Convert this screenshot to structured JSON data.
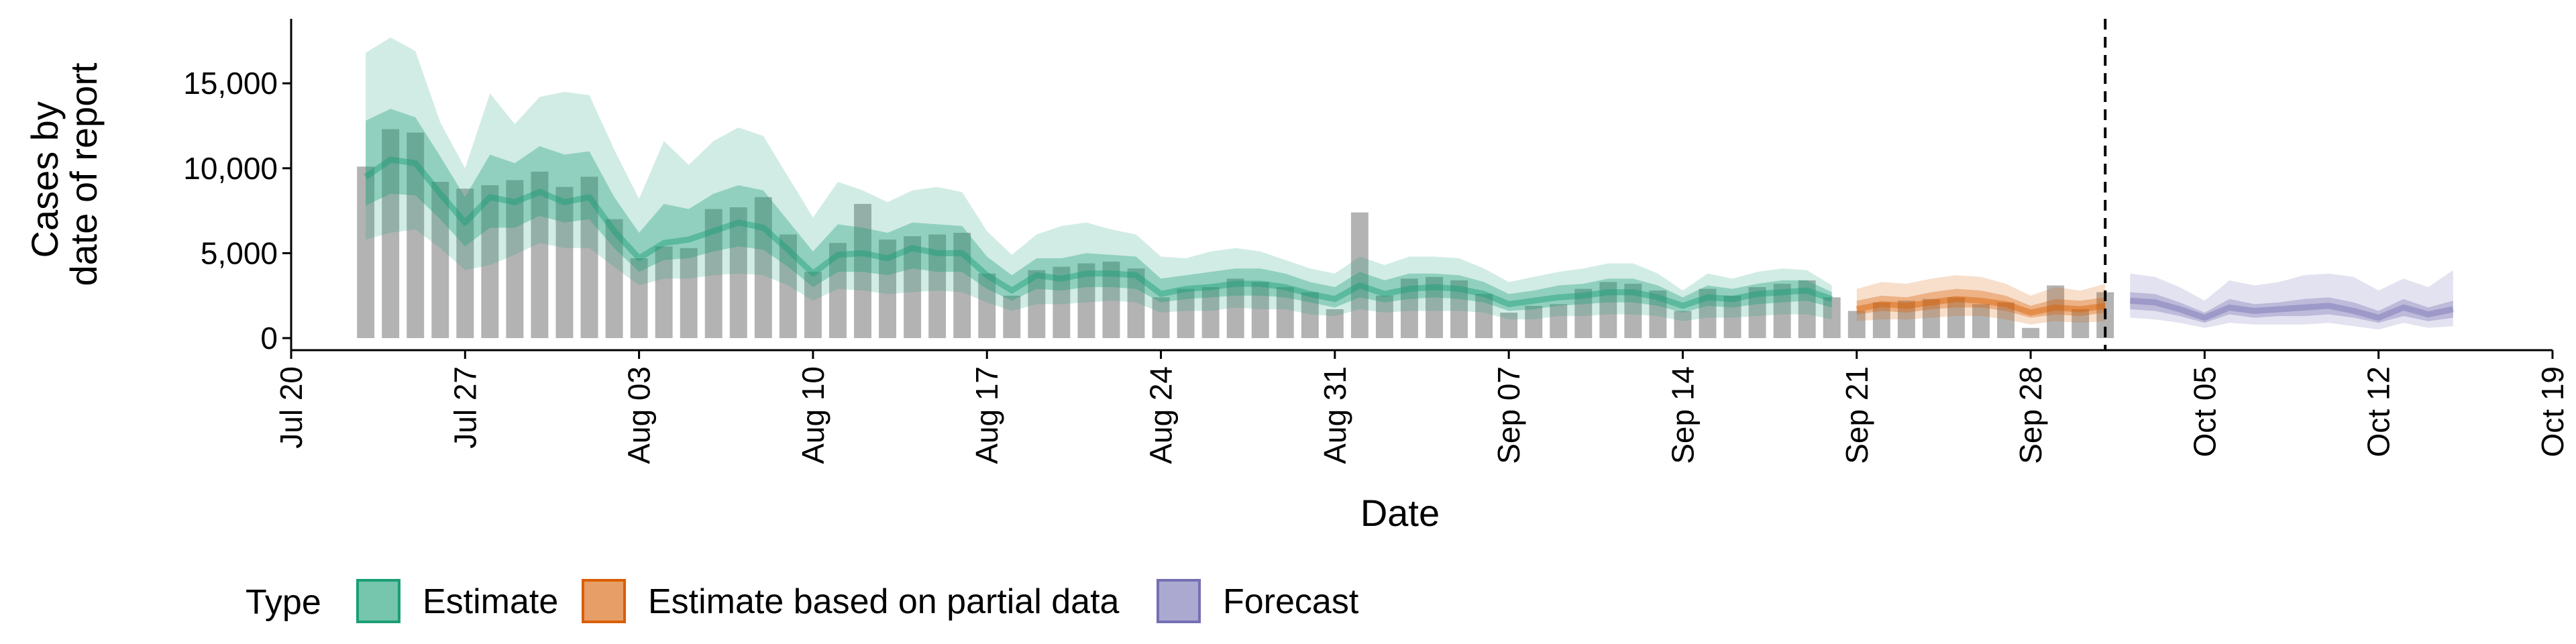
{
  "chart_data": {
    "type": "bar",
    "xlabel": "Date",
    "ylabel": [
      "Cases by",
      "date of report"
    ],
    "yticks": [
      0,
      5000,
      10000,
      15000
    ],
    "ytick_labels": [
      "0",
      "5,000",
      "10,000",
      "15,000"
    ],
    "ylim": [
      0,
      18500
    ],
    "xlim": [
      "2020-07-20",
      "2020-10-19"
    ],
    "xtick_labels": [
      "Jul 20",
      "Jul 27",
      "Aug 03",
      "Aug 10",
      "Aug 17",
      "Aug 24",
      "Aug 31",
      "Sep 07",
      "Sep 14",
      "Sep 21",
      "Sep 28",
      "Oct 05",
      "Oct 12",
      "Oct 19"
    ],
    "xtick_dates": [
      "2020-07-20",
      "2020-07-27",
      "2020-08-03",
      "2020-08-10",
      "2020-08-17",
      "2020-08-24",
      "2020-08-31",
      "2020-09-07",
      "2020-09-14",
      "2020-09-21",
      "2020-09-28",
      "2020-10-05",
      "2020-10-12",
      "2020-10-19"
    ],
    "vline_date": "2020-10-01",
    "colors": {
      "bars": "#b3b3b3",
      "Estimate": "#1b9e77",
      "Estimate based on partial data": "#d95f02",
      "Forecast": "#7570b3"
    },
    "reported_cases": {
      "dates": [
        "2020-07-23",
        "2020-07-24",
        "2020-07-25",
        "2020-07-26",
        "2020-07-27",
        "2020-07-28",
        "2020-07-29",
        "2020-07-30",
        "2020-07-31",
        "2020-08-01",
        "2020-08-02",
        "2020-08-03",
        "2020-08-04",
        "2020-08-05",
        "2020-08-06",
        "2020-08-07",
        "2020-08-08",
        "2020-08-09",
        "2020-08-10",
        "2020-08-11",
        "2020-08-12",
        "2020-08-13",
        "2020-08-14",
        "2020-08-15",
        "2020-08-16",
        "2020-08-17",
        "2020-08-18",
        "2020-08-19",
        "2020-08-20",
        "2020-08-21",
        "2020-08-22",
        "2020-08-23",
        "2020-08-24",
        "2020-08-25",
        "2020-08-26",
        "2020-08-27",
        "2020-08-28",
        "2020-08-29",
        "2020-08-30",
        "2020-08-31",
        "2020-09-01",
        "2020-09-02",
        "2020-09-03",
        "2020-09-04",
        "2020-09-05",
        "2020-09-06",
        "2020-09-07",
        "2020-09-08",
        "2020-09-09",
        "2020-09-10",
        "2020-09-11",
        "2020-09-12",
        "2020-09-13",
        "2020-09-14",
        "2020-09-15",
        "2020-09-16",
        "2020-09-17",
        "2020-09-18",
        "2020-09-19",
        "2020-09-20",
        "2020-09-21",
        "2020-09-22",
        "2020-09-23",
        "2020-09-24",
        "2020-09-25",
        "2020-09-26",
        "2020-09-27",
        "2020-09-28",
        "2020-09-29",
        "2020-09-30",
        "2020-10-01"
      ],
      "values": [
        10100,
        12300,
        12100,
        9200,
        8800,
        9000,
        9300,
        9800,
        8900,
        9500,
        7000,
        4700,
        5400,
        5300,
        7600,
        7700,
        8300,
        6100,
        3900,
        5600,
        7900,
        5800,
        6000,
        6100,
        6200,
        3800,
        2500,
        4000,
        4200,
        4400,
        4500,
        4100,
        2400,
        2900,
        3000,
        3500,
        3300,
        3000,
        2700,
        1700,
        7400,
        2500,
        3500,
        3600,
        3400,
        2600,
        1500,
        1900,
        2000,
        2900,
        3300,
        3200,
        2800,
        1600,
        2900,
        2500,
        3000,
        3200,
        3400,
        2400,
        1600,
        2100,
        2200,
        2300,
        2400,
        2000,
        2100,
        600,
        3100,
        1700,
        2700
      ]
    },
    "series": [
      {
        "name": "Estimate",
        "dates": [
          "2020-07-23",
          "2020-07-24",
          "2020-07-25",
          "2020-07-26",
          "2020-07-27",
          "2020-07-28",
          "2020-07-29",
          "2020-07-30",
          "2020-07-31",
          "2020-08-01",
          "2020-08-02",
          "2020-08-03",
          "2020-08-04",
          "2020-08-05",
          "2020-08-06",
          "2020-08-07",
          "2020-08-08",
          "2020-08-09",
          "2020-08-10",
          "2020-08-11",
          "2020-08-12",
          "2020-08-13",
          "2020-08-14",
          "2020-08-15",
          "2020-08-16",
          "2020-08-17",
          "2020-08-18",
          "2020-08-19",
          "2020-08-20",
          "2020-08-21",
          "2020-08-22",
          "2020-08-23",
          "2020-08-24",
          "2020-08-25",
          "2020-08-26",
          "2020-08-27",
          "2020-08-28",
          "2020-08-29",
          "2020-08-30",
          "2020-08-31",
          "2020-09-01",
          "2020-09-02",
          "2020-09-03",
          "2020-09-04",
          "2020-09-05",
          "2020-09-06",
          "2020-09-07",
          "2020-09-08",
          "2020-09-09",
          "2020-09-10",
          "2020-09-11",
          "2020-09-12",
          "2020-09-13",
          "2020-09-14",
          "2020-09-15",
          "2020-09-16",
          "2020-09-17",
          "2020-09-18",
          "2020-09-19",
          "2020-09-20"
        ],
        "median": [
          9500,
          10500,
          10300,
          8500,
          6800,
          8300,
          8000,
          8600,
          8000,
          8300,
          6300,
          4700,
          5600,
          5800,
          6300,
          6800,
          6500,
          5200,
          3800,
          4900,
          5000,
          4700,
          5300,
          5000,
          5000,
          3700,
          2800,
          3700,
          3500,
          3800,
          3800,
          3700,
          2600,
          2900,
          3000,
          3200,
          3200,
          3000,
          2600,
          2300,
          3100,
          2600,
          2900,
          3000,
          2900,
          2600,
          2000,
          2200,
          2400,
          2500,
          2700,
          2700,
          2400,
          1900,
          2400,
          2300,
          2600,
          2700,
          2800,
          2300
        ],
        "lower_90": [
          5800,
          6200,
          6400,
          5300,
          4000,
          4300,
          4900,
          5600,
          5300,
          5300,
          4200,
          3100,
          3500,
          3500,
          3700,
          3800,
          3700,
          3100,
          2200,
          2900,
          2800,
          2600,
          2700,
          2800,
          2700,
          2100,
          1600,
          2000,
          2000,
          2100,
          2200,
          2100,
          1500,
          1600,
          1600,
          1800,
          1700,
          1700,
          1400,
          1300,
          1700,
          1500,
          1600,
          1600,
          1600,
          1500,
          1100,
          1100,
          1300,
          1300,
          1400,
          1400,
          1300,
          1000,
          1200,
          1200,
          1300,
          1400,
          1400,
          1100
        ],
        "upper_90": [
          16800,
          17700,
          16900,
          12700,
          10000,
          14400,
          12600,
          14200,
          14500,
          14300,
          11100,
          8200,
          11600,
          10200,
          11600,
          12400,
          11900,
          9500,
          7100,
          9200,
          8700,
          8000,
          8700,
          8900,
          8600,
          6300,
          4900,
          6100,
          6600,
          6800,
          6400,
          6100,
          4800,
          4700,
          5100,
          5300,
          5100,
          4600,
          4100,
          3800,
          4800,
          4300,
          4800,
          4800,
          4700,
          4100,
          3300,
          3600,
          3900,
          4100,
          4400,
          4400,
          3800,
          2800,
          3800,
          3500,
          3900,
          4100,
          4000,
          3100
        ],
        "lower_50": [
          7800,
          8500,
          8400,
          7000,
          5400,
          6500,
          6500,
          7200,
          6800,
          7000,
          5300,
          3900,
          4600,
          4700,
          5100,
          5400,
          5200,
          4200,
          3000,
          3900,
          3900,
          3700,
          4100,
          3900,
          3900,
          2900,
          2200,
          2900,
          2800,
          3000,
          3000,
          2900,
          2100,
          2300,
          2400,
          2500,
          2500,
          2400,
          2100,
          1800,
          2400,
          2100,
          2300,
          2400,
          2300,
          2100,
          1600,
          1700,
          1900,
          2000,
          2100,
          2100,
          1900,
          1500,
          1900,
          1800,
          2000,
          2100,
          2200,
          1800
        ],
        "upper_50": [
          12800,
          13500,
          13000,
          10700,
          8300,
          10800,
          10300,
          11300,
          10800,
          11000,
          8300,
          6200,
          7900,
          7600,
          8500,
          9000,
          8700,
          6900,
          5100,
          6700,
          6500,
          6200,
          6800,
          6700,
          6600,
          4800,
          3700,
          4700,
          4700,
          5000,
          4900,
          4800,
          3500,
          3700,
          3900,
          4100,
          4100,
          3800,
          3300,
          3000,
          3900,
          3400,
          3800,
          3800,
          3700,
          3300,
          2600,
          2800,
          3100,
          3200,
          3500,
          3500,
          3100,
          2400,
          3100,
          2900,
          3200,
          3400,
          3400,
          2700
        ]
      },
      {
        "name": "Estimate based on partial data",
        "dates": [
          "2020-09-21",
          "2020-09-22",
          "2020-09-23",
          "2020-09-24",
          "2020-09-25",
          "2020-09-26",
          "2020-09-27",
          "2020-09-28",
          "2020-09-29",
          "2020-09-30",
          "2020-10-01"
        ],
        "median": [
          1700,
          2000,
          1900,
          2100,
          2300,
          2200,
          2000,
          1500,
          1800,
          1700,
          1900
        ],
        "lower_90": [
          1000,
          1100,
          1100,
          1200,
          1300,
          1300,
          1100,
          800,
          1000,
          900,
          1000
        ],
        "upper_90": [
          2900,
          3300,
          3200,
          3500,
          3700,
          3600,
          3200,
          2500,
          3000,
          2800,
          3200
        ],
        "lower_50": [
          1400,
          1600,
          1500,
          1700,
          1800,
          1800,
          1600,
          1200,
          1400,
          1300,
          1500
        ],
        "upper_50": [
          2200,
          2500,
          2400,
          2700,
          2900,
          2800,
          2500,
          1900,
          2300,
          2200,
          2400
        ]
      },
      {
        "name": "Forecast",
        "dates": [
          "2020-10-02",
          "2020-10-03",
          "2020-10-04",
          "2020-10-05",
          "2020-10-06",
          "2020-10-07",
          "2020-10-08",
          "2020-10-09",
          "2020-10-10",
          "2020-10-11",
          "2020-10-12",
          "2020-10-13",
          "2020-10-14",
          "2020-10-15"
        ],
        "median": [
          2200,
          2100,
          1700,
          1200,
          1800,
          1600,
          1700,
          1800,
          1900,
          1600,
          1200,
          1800,
          1400,
          1700
        ],
        "lower_90": [
          1200,
          1100,
          900,
          600,
          900,
          800,
          800,
          800,
          900,
          700,
          500,
          900,
          600,
          700
        ],
        "upper_90": [
          3800,
          3600,
          3000,
          2200,
          3400,
          3100,
          3300,
          3700,
          3800,
          3600,
          2800,
          3500,
          3000,
          4000
        ],
        "lower_50": [
          1700,
          1600,
          1300,
          900,
          1400,
          1200,
          1300,
          1300,
          1400,
          1200,
          900,
          1300,
          1000,
          1200
        ],
        "upper_50": [
          2700,
          2600,
          2100,
          1500,
          2300,
          2000,
          2100,
          2300,
          2400,
          2100,
          1600,
          2300,
          1800,
          2200
        ]
      }
    ],
    "legend": {
      "title": "Type",
      "position": "bottom-left",
      "items": [
        "Estimate",
        "Estimate based on partial data",
        "Forecast"
      ]
    },
    "grid": false
  }
}
